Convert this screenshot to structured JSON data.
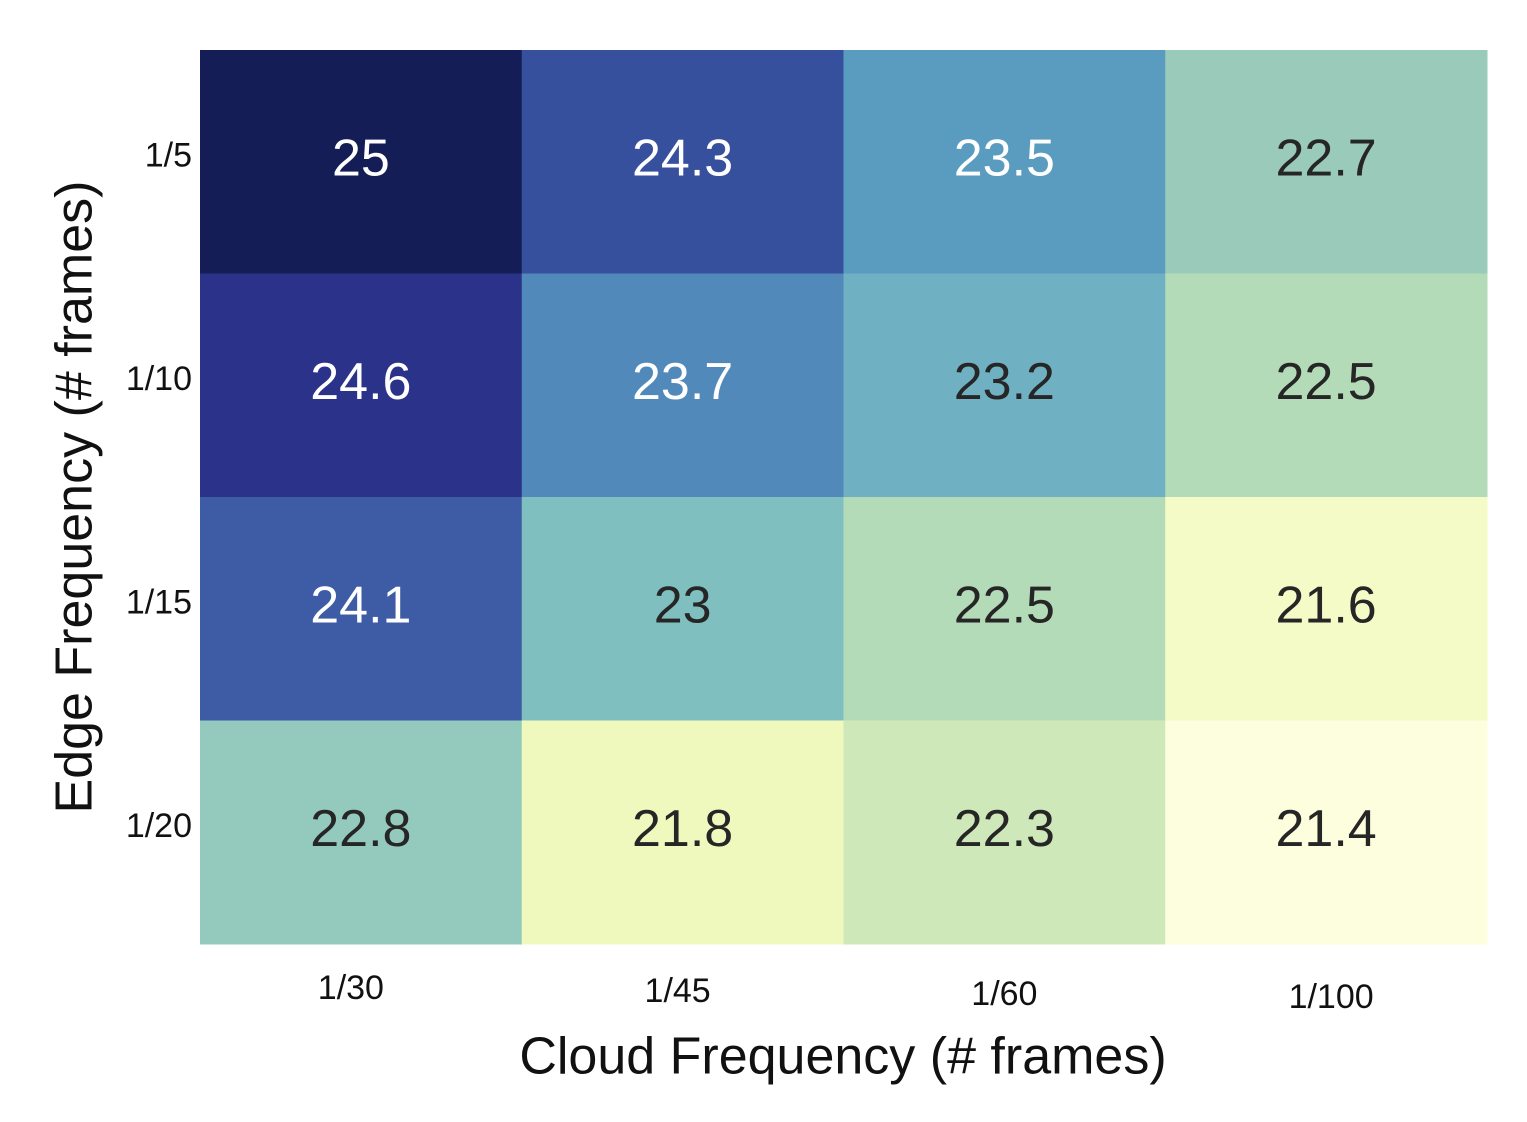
{
  "chart_data": {
    "type": "heatmap",
    "x_label": "Cloud Frequency (# frames)",
    "y_label": "Edge Frequency (# frames)",
    "x_categories": [
      "1/30",
      "1/45",
      "1/60",
      "1/100"
    ],
    "y_categories": [
      "1/5",
      "1/10",
      "1/15",
      "1/20"
    ],
    "values": [
      [
        25,
        24.3,
        23.5,
        22.7
      ],
      [
        24.6,
        23.7,
        23.2,
        22.5
      ],
      [
        24.1,
        23,
        22.5,
        21.6
      ],
      [
        22.8,
        21.8,
        22.3,
        21.4
      ]
    ],
    "colors": [
      [
        "#151d56",
        "#37509e",
        "#5a9bc0",
        "#9acbba"
      ],
      [
        "#2b3289",
        "#5289bb",
        "#6fb1c2",
        "#b4dbb8"
      ],
      [
        "#3e5ba6",
        "#80bfc0",
        "#b4dbb8",
        "#f5fbc6"
      ],
      [
        "#94c9bd",
        "#eff8bd",
        "#cfe8b9",
        "#fdfedd"
      ]
    ]
  }
}
